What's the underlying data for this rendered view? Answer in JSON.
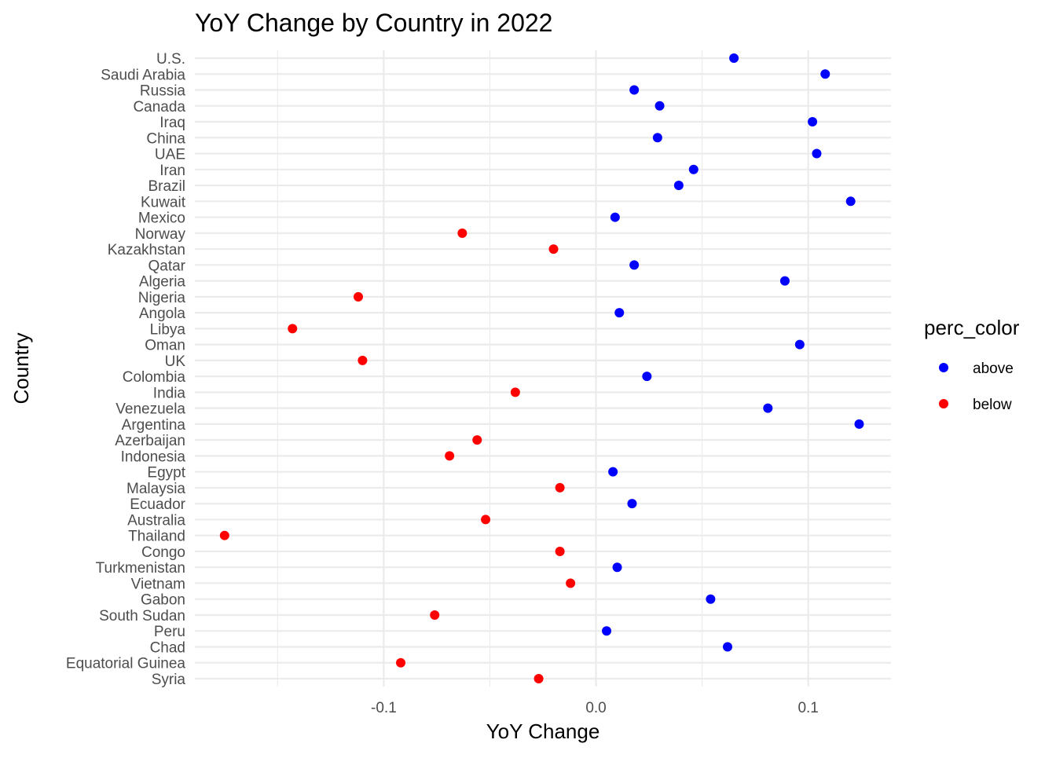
{
  "chart_data": {
    "type": "scatter",
    "title": "YoY Change by Country in 2022",
    "xlabel": "YoY Change",
    "ylabel": "Country",
    "xlim": [
      -0.189,
      0.139
    ],
    "x_ticks": [
      {
        "value": -0.1,
        "label": "-0.1"
      },
      {
        "value": 0.0,
        "label": "0.0"
      },
      {
        "value": 0.1,
        "label": "0.1"
      }
    ],
    "x_minor_ticks": [
      -0.15,
      -0.05,
      0.05
    ],
    "grid": true,
    "legend": {
      "title": "perc_color",
      "placement": "right",
      "entries": [
        {
          "label": "above",
          "color": "#0000ff"
        },
        {
          "label": "below",
          "color": "#ff0000"
        }
      ]
    },
    "points": [
      {
        "country": "U.S.",
        "value": 0.065,
        "group": "above"
      },
      {
        "country": "Saudi Arabia",
        "value": 0.108,
        "group": "above"
      },
      {
        "country": "Russia",
        "value": 0.018,
        "group": "above"
      },
      {
        "country": "Canada",
        "value": 0.03,
        "group": "above"
      },
      {
        "country": "Iraq",
        "value": 0.102,
        "group": "above"
      },
      {
        "country": "China",
        "value": 0.029,
        "group": "above"
      },
      {
        "country": "UAE",
        "value": 0.104,
        "group": "above"
      },
      {
        "country": "Iran",
        "value": 0.046,
        "group": "above"
      },
      {
        "country": "Brazil",
        "value": 0.039,
        "group": "above"
      },
      {
        "country": "Kuwait",
        "value": 0.12,
        "group": "above"
      },
      {
        "country": "Mexico",
        "value": 0.009,
        "group": "above"
      },
      {
        "country": "Norway",
        "value": -0.063,
        "group": "below"
      },
      {
        "country": "Kazakhstan",
        "value": -0.02,
        "group": "below"
      },
      {
        "country": "Qatar",
        "value": 0.018,
        "group": "above"
      },
      {
        "country": "Algeria",
        "value": 0.089,
        "group": "above"
      },
      {
        "country": "Nigeria",
        "value": -0.112,
        "group": "below"
      },
      {
        "country": "Angola",
        "value": 0.011,
        "group": "above"
      },
      {
        "country": "Libya",
        "value": -0.143,
        "group": "below"
      },
      {
        "country": "Oman",
        "value": 0.096,
        "group": "above"
      },
      {
        "country": "UK",
        "value": -0.11,
        "group": "below"
      },
      {
        "country": "Colombia",
        "value": 0.024,
        "group": "above"
      },
      {
        "country": "India",
        "value": -0.038,
        "group": "below"
      },
      {
        "country": "Venezuela",
        "value": 0.081,
        "group": "above"
      },
      {
        "country": "Argentina",
        "value": 0.124,
        "group": "above"
      },
      {
        "country": "Azerbaijan",
        "value": -0.056,
        "group": "below"
      },
      {
        "country": "Indonesia",
        "value": -0.069,
        "group": "below"
      },
      {
        "country": "Egypt",
        "value": 0.008,
        "group": "above"
      },
      {
        "country": "Malaysia",
        "value": -0.017,
        "group": "below"
      },
      {
        "country": "Ecuador",
        "value": 0.017,
        "group": "above"
      },
      {
        "country": "Australia",
        "value": -0.052,
        "group": "below"
      },
      {
        "country": "Thailand",
        "value": -0.175,
        "group": "below"
      },
      {
        "country": "Congo",
        "value": -0.017,
        "group": "below"
      },
      {
        "country": "Turkmenistan",
        "value": 0.01,
        "group": "above"
      },
      {
        "country": "Vietnam",
        "value": -0.012,
        "group": "below"
      },
      {
        "country": "Gabon",
        "value": 0.054,
        "group": "above"
      },
      {
        "country": "South Sudan",
        "value": -0.076,
        "group": "below"
      },
      {
        "country": "Peru",
        "value": 0.005,
        "group": "above"
      },
      {
        "country": "Chad",
        "value": 0.062,
        "group": "above"
      },
      {
        "country": "Equatorial Guinea",
        "value": -0.092,
        "group": "below"
      },
      {
        "country": "Syria",
        "value": -0.027,
        "group": "below"
      }
    ]
  }
}
